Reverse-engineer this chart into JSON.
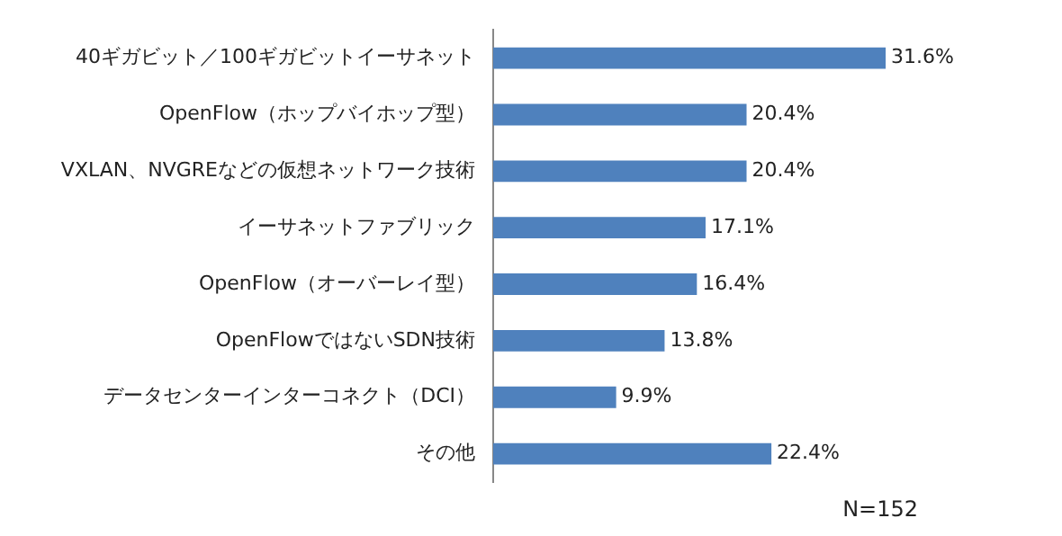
{
  "chart_data": {
    "type": "bar",
    "orientation": "horizontal",
    "categories": [
      "40ギガビット／100ギガビットイーサネット",
      "OpenFlow（ホップバイホップ型）",
      "VXLAN、NVGREなどの仮想ネットワーク技術",
      "イーサネットファブリック",
      "OpenFlow（オーバーレイ型）",
      "OpenFlowではないSDN技術",
      "データセンターインターコネクト（DCI）",
      "その他"
    ],
    "values": [
      31.6,
      20.4,
      20.4,
      17.1,
      16.4,
      13.8,
      9.9,
      22.4
    ],
    "value_labels": [
      "31.6%",
      "20.4%",
      "20.4%",
      "17.1%",
      "16.4%",
      "13.8%",
      "9.9%",
      "22.4%"
    ],
    "color": "#4f81bd",
    "tick_labels": "y",
    "grid": false,
    "legend": false,
    "annotations": [
      "N=152"
    ]
  }
}
